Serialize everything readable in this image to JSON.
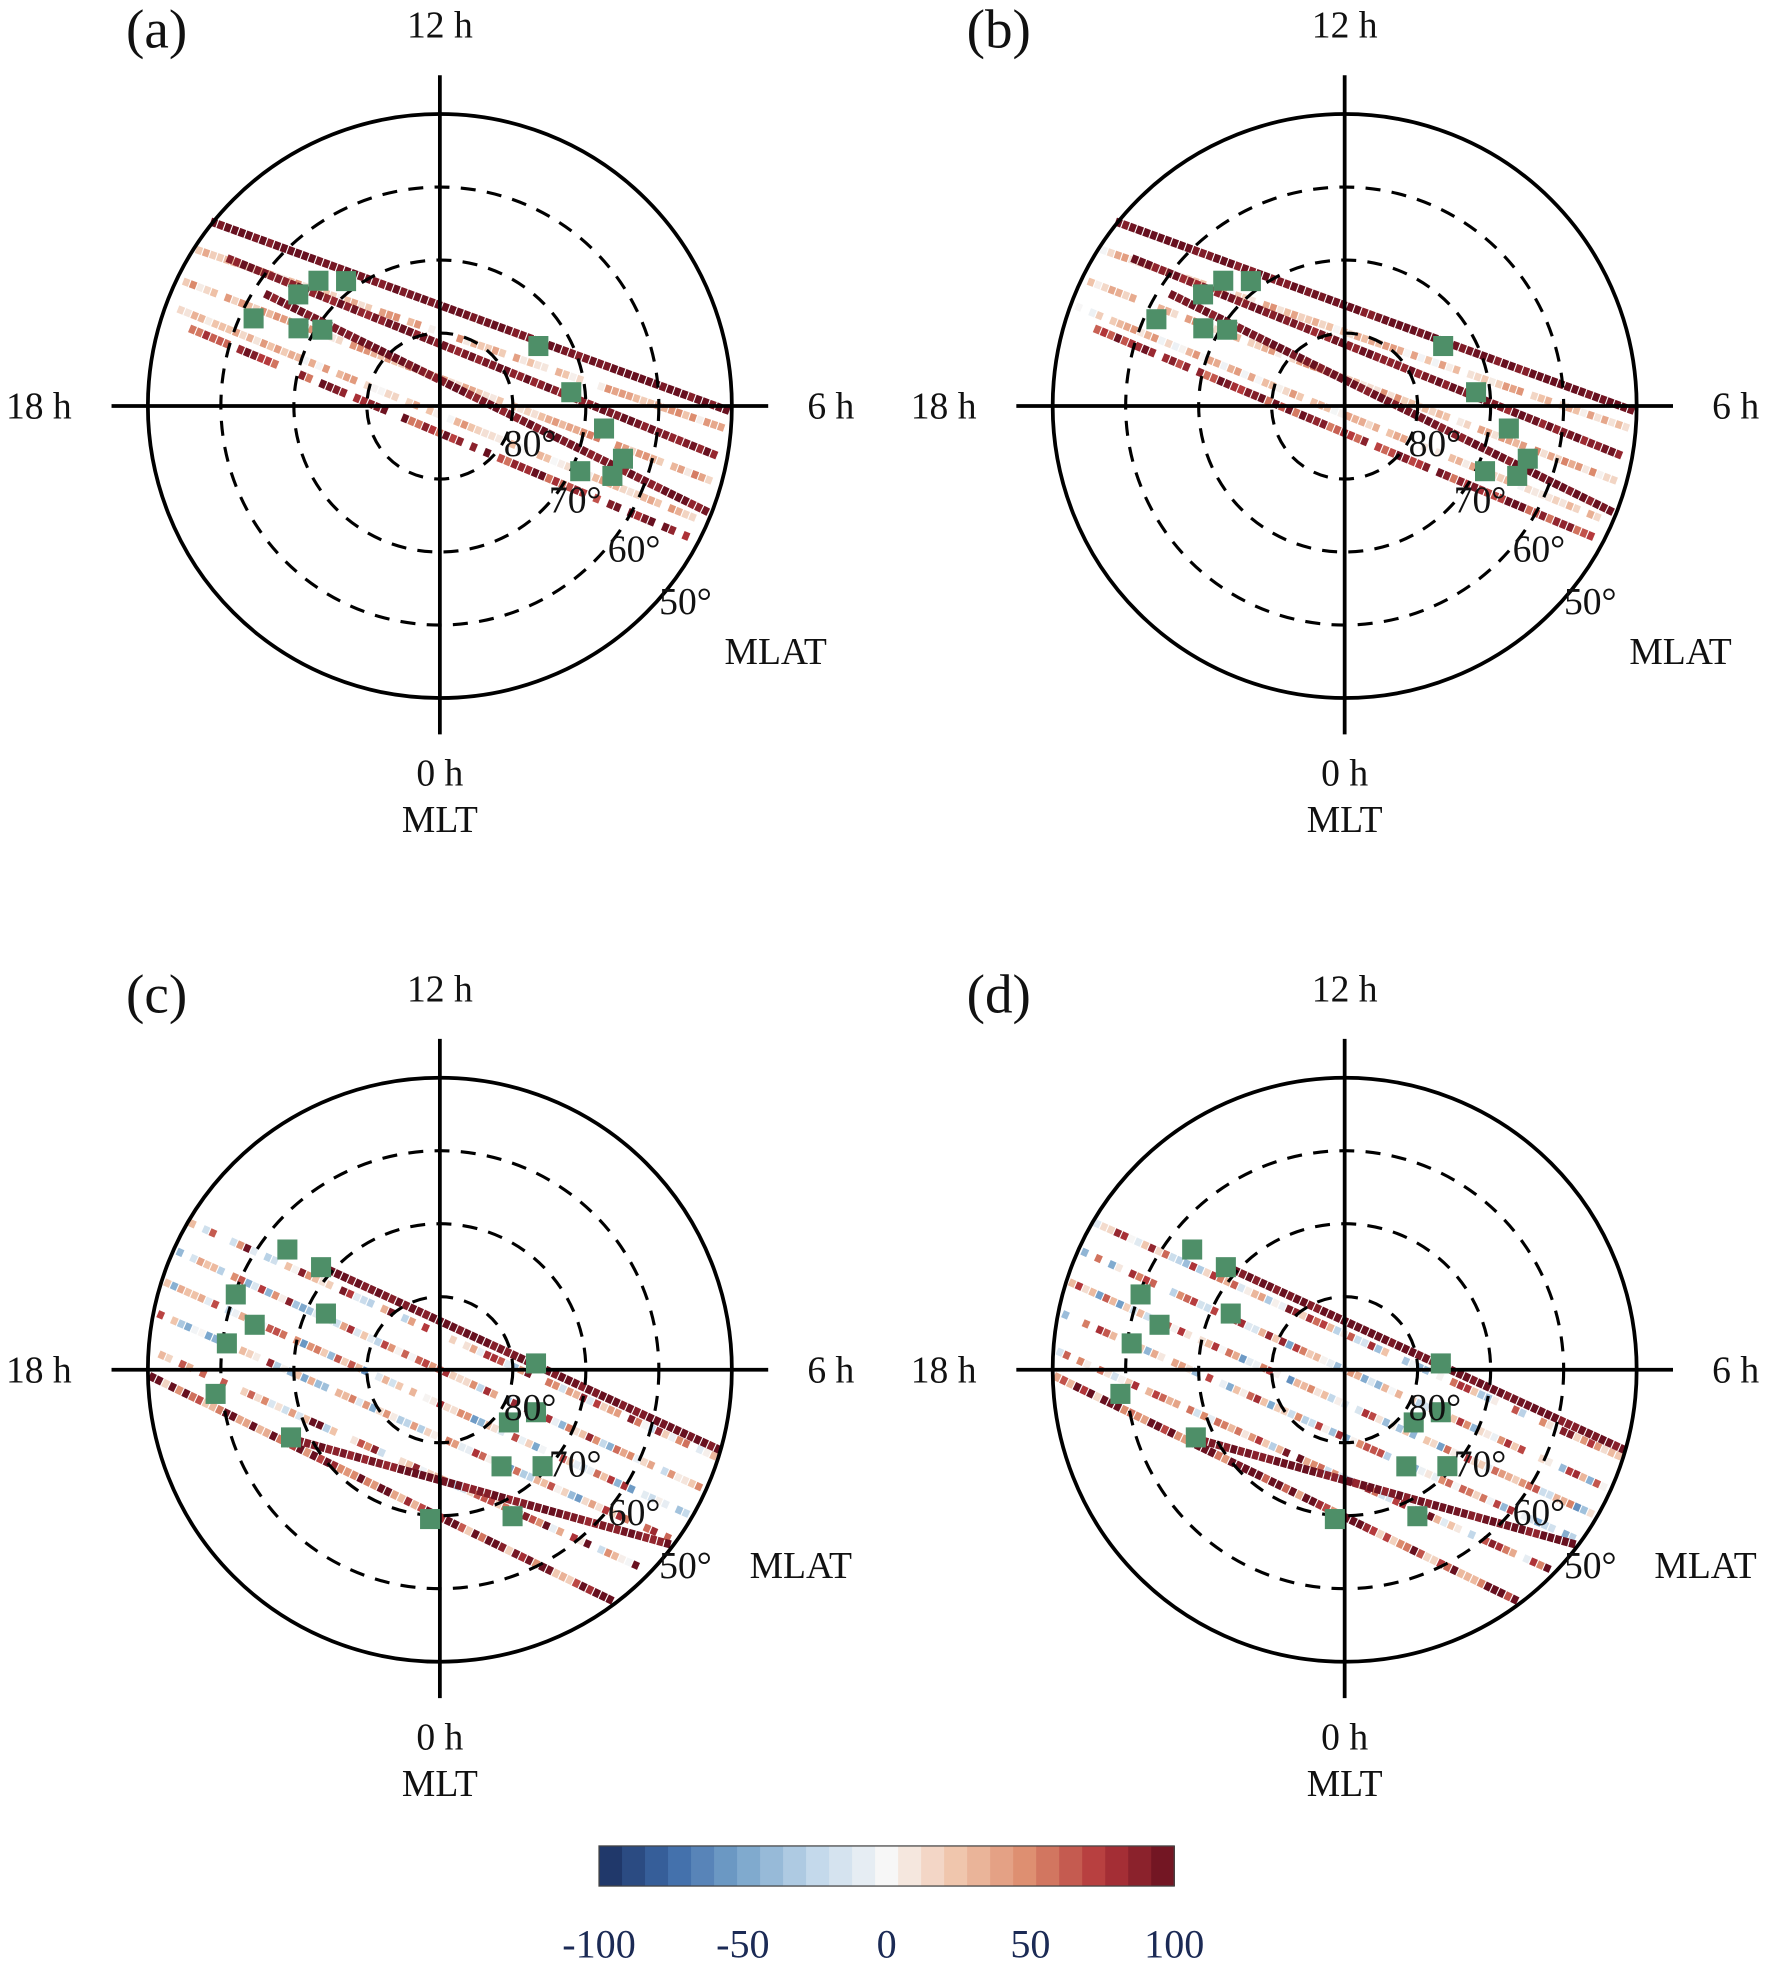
{
  "chart_data": [
    {
      "type": "polar-scatter",
      "panel_label": "(a)",
      "mlt_labels": {
        "top": "12 h",
        "right": "6 h",
        "left": "18 h",
        "bottom": "0 h"
      },
      "mlt_axis_label": "MLT",
      "mlat_axis_label": "MLAT",
      "mlat_outer": 50,
      "mlat_rings": [
        60,
        70,
        80
      ],
      "mlat_ring_labels": [
        "80°",
        "70°",
        "60°",
        "50°"
      ],
      "tracks": [
        {
          "start": [
            15.41,
            49.7
          ],
          "end": [
            5.93,
            50.2
          ],
          "value": 95
        },
        {
          "start": [
            15.82,
            50.3
          ],
          "end": [
            5.7,
            50.8
          ],
          "value": 25
        },
        {
          "start": [
            15.68,
            54.5
          ],
          "end": [
            5.32,
            51.3
          ],
          "value": 90
        },
        {
          "start": [
            16.27,
            50.9
          ],
          "end": [
            4.97,
            51.2
          ],
          "value": 30
        },
        {
          "start": [
            15.82,
            61.5
          ],
          "end": [
            4.56,
            50.3
          ],
          "value": 92
        },
        {
          "start": [
            16.64,
            50.7
          ],
          "end": [
            4.42,
            51.6
          ],
          "value": 22
        },
        {
          "start": [
            16.85,
            54.1
          ],
          "end": [
            4.15,
            51.3
          ],
          "value": 80
        }
      ],
      "markers": [
        [
          16.32,
          61.8
        ],
        [
          15.45,
          65.3
        ],
        [
          14.94,
          66.1
        ],
        [
          14.46,
          68.6
        ],
        [
          16.08,
          67.9
        ],
        [
          15.8,
          70.8
        ],
        [
          8.09,
          74.2
        ],
        [
          6.4,
          71.9
        ],
        [
          5.48,
          67.3
        ],
        [
          4.93,
          63.9
        ],
        [
          4.34,
          68.8
        ],
        [
          4.53,
          64.5
        ]
      ]
    },
    {
      "type": "polar-scatter",
      "panel_label": "(b)",
      "mlt_labels": {
        "top": "12 h",
        "right": "6 h",
        "left": "18 h",
        "bottom": "0 h"
      },
      "mlt_axis_label": "MLT",
      "mlat_axis_label": "MLAT",
      "mlat_outer": 50,
      "mlat_rings": [
        60,
        70,
        80
      ],
      "mlat_ring_labels": [
        "80°",
        "70°",
        "60°",
        "50°"
      ],
      "tracks": [
        {
          "start": [
            15.41,
            49.7
          ],
          "end": [
            5.93,
            50.2
          ],
          "value": 95
        },
        {
          "start": [
            15.82,
            50.3
          ],
          "end": [
            5.7,
            50.8
          ],
          "value": 22
        },
        {
          "start": [
            15.68,
            54.5
          ],
          "end": [
            5.32,
            51.3
          ],
          "value": 88
        },
        {
          "start": [
            16.27,
            50.9
          ],
          "end": [
            4.97,
            51.2
          ],
          "value": 28
        },
        {
          "start": [
            15.82,
            61.5
          ],
          "end": [
            4.56,
            50.3
          ],
          "value": 92
        },
        {
          "start": [
            16.64,
            50.7
          ],
          "end": [
            4.42,
            51.6
          ],
          "value": 20
        },
        {
          "start": [
            16.85,
            54.1
          ],
          "end": [
            4.15,
            51.3
          ],
          "value": 78
        }
      ],
      "markers": [
        [
          16.35,
          61.6
        ],
        [
          15.45,
          65.3
        ],
        [
          14.94,
          66.1
        ],
        [
          14.46,
          68.6
        ],
        [
          16.08,
          67.9
        ],
        [
          15.8,
          70.8
        ],
        [
          8.09,
          74.2
        ],
        [
          6.4,
          71.9
        ],
        [
          5.48,
          67.3
        ],
        [
          4.93,
          63.9
        ],
        [
          4.34,
          68.8
        ],
        [
          4.53,
          64.5
        ]
      ]
    },
    {
      "type": "polar-scatter",
      "panel_label": "(c)",
      "mlt_labels": {
        "top": "12 h",
        "right": "6 h",
        "left": "18 h",
        "bottom": "0 h"
      },
      "mlt_axis_label": "MLT",
      "mlat_axis_label": "MLAT",
      "mlat_outer": 50,
      "mlat_rings": [
        60,
        70,
        80
      ],
      "mlat_ring_labels": [
        "80°",
        "70°",
        "60°",
        "50°"
      ],
      "tracks": [
        {
          "start": [
            15.97,
            50.2
          ],
          "end": [
            4.83,
            50.1
          ],
          "value": 30
        },
        {
          "start": [
            15.31,
            67.5
          ],
          "end": [
            4.93,
            49.8
          ],
          "value": 95
        },
        {
          "start": [
            16.38,
            50.5
          ],
          "end": [
            4.38,
            50.5
          ],
          "value": 20
        },
        {
          "start": [
            16.82,
            50.4
          ],
          "end": [
            3.99,
            50.4
          ],
          "value": 10
        },
        {
          "start": [
            17.25,
            50.6
          ],
          "end": [
            3.59,
            50.7
          ],
          "value": 15
        },
        {
          "start": [
            17.75,
            50.5
          ],
          "end": [
            3.06,
            50.6
          ],
          "value": 40
        },
        {
          "start": [
            18.08,
            50.2
          ],
          "end": [
            2.46,
            50.3
          ],
          "value": 85
        },
        {
          "start": [
            19.64,
            67.4
          ],
          "end": [
            3.53,
            50.2
          ],
          "value": 90
        }
      ],
      "markers": [
        [
          15.45,
          63.4
        ],
        [
          15.28,
          68.5
        ],
        [
          16.65,
          60.2
        ],
        [
          16.25,
          72.6
        ],
        [
          17.09,
          63.9
        ],
        [
          17.53,
          60.6
        ],
        [
          18.41,
          59.1
        ],
        [
          19.63,
          67.6
        ],
        [
          23.75,
          69.5
        ],
        [
          1.76,
          67.6
        ],
        [
          6.25,
          76.8
        ],
        [
          4.41,
          75.6
        ],
        [
          3.51,
          78.1
        ],
        [
          2.17,
          74.3
        ],
        [
          3.12,
          70.7
        ]
      ]
    },
    {
      "type": "polar-scatter",
      "panel_label": "(d)",
      "mlt_labels": {
        "top": "12 h",
        "right": "6 h",
        "left": "18 h",
        "bottom": "0 h"
      },
      "mlt_axis_label": "MLT",
      "mlat_axis_label": "MLAT",
      "mlat_outer": 50,
      "mlat_rings": [
        60,
        70,
        80
      ],
      "mlat_ring_labels": [
        "80°",
        "70°",
        "60°",
        "50°"
      ],
      "tracks": [
        {
          "start": [
            15.97,
            50.2
          ],
          "end": [
            4.83,
            50.1
          ],
          "value": 28
        },
        {
          "start": [
            15.31,
            67.5
          ],
          "end": [
            4.93,
            49.8
          ],
          "value": 95
        },
        {
          "start": [
            16.38,
            50.5
          ],
          "end": [
            4.38,
            50.5
          ],
          "value": 18
        },
        {
          "start": [
            16.82,
            50.4
          ],
          "end": [
            3.99,
            50.4
          ],
          "value": 8
        },
        {
          "start": [
            17.25,
            50.6
          ],
          "end": [
            3.59,
            50.7
          ],
          "value": 15
        },
        {
          "start": [
            17.75,
            50.5
          ],
          "end": [
            3.06,
            50.6
          ],
          "value": 38
        },
        {
          "start": [
            18.08,
            50.2
          ],
          "end": [
            2.46,
            50.3
          ],
          "value": 85
        },
        {
          "start": [
            19.64,
            67.4
          ],
          "end": [
            3.53,
            50.2
          ],
          "value": 90
        }
      ],
      "markers": [
        [
          15.45,
          63.4
        ],
        [
          15.28,
          68.5
        ],
        [
          16.65,
          60.2
        ],
        [
          16.25,
          72.6
        ],
        [
          17.09,
          63.9
        ],
        [
          17.53,
          60.6
        ],
        [
          18.41,
          59.1
        ],
        [
          19.63,
          67.6
        ],
        [
          23.75,
          69.5
        ],
        [
          1.76,
          67.6
        ],
        [
          6.25,
          76.8
        ],
        [
          4.41,
          75.6
        ],
        [
          3.51,
          78.1
        ],
        [
          2.17,
          74.3
        ],
        [
          3.12,
          70.7
        ]
      ]
    }
  ],
  "colorbar": {
    "range": [
      -100,
      100
    ],
    "ticks": [
      "-100",
      "-50",
      "0",
      "50",
      "100"
    ],
    "colormap": "diverging blue-white-red",
    "tick_color": "#1b2a55"
  },
  "colors": {
    "marker": "#4e8f68",
    "axis": "#000000"
  }
}
